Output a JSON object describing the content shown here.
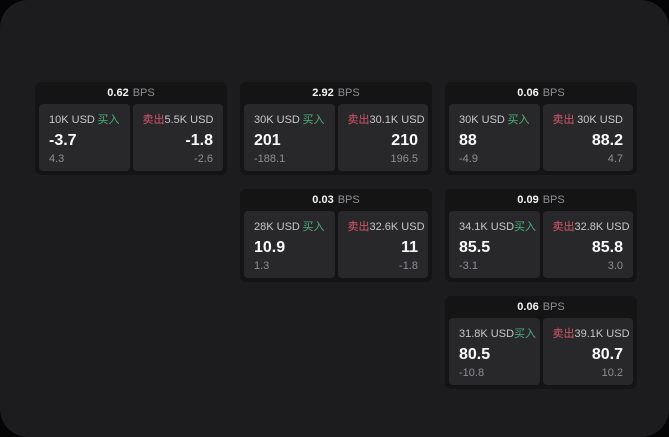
{
  "colors": {
    "buy": "#4fae7c",
    "sell": "#d5556a",
    "muted": "#8f8f93",
    "surface": "#1c1c1e",
    "card": "#141415",
    "pane": "#28282a"
  },
  "labels": {
    "bps_unit": "BPS",
    "buy_side": "买入",
    "sell_side": "卖出"
  },
  "cards": [
    {
      "bps": "0.62",
      "buy": {
        "amount": "10K USD",
        "side": "买入",
        "value": "-3.7",
        "sub": "4.3"
      },
      "sell": {
        "amount": "5.5K USD",
        "side": "卖出",
        "value": "-1.8",
        "sub": "-2.6"
      }
    },
    {
      "bps": "2.92",
      "buy": {
        "amount": "30K USD",
        "side": "买入",
        "value": "201",
        "sub": "-188.1"
      },
      "sell": {
        "amount": "30.1K USD",
        "side": "卖出",
        "value": "210",
        "sub": "196.5"
      }
    },
    {
      "bps": "0.06",
      "buy": {
        "amount": "30K USD",
        "side": "买入",
        "value": "88",
        "sub": "-4.9"
      },
      "sell": {
        "amount": "30K USD",
        "side": "卖出",
        "value": "88.2",
        "sub": "4.7"
      }
    },
    {
      "bps": "0.03",
      "buy": {
        "amount": "28K USD",
        "side": "买入",
        "value": "10.9",
        "sub": "1.3"
      },
      "sell": {
        "amount": "32.6K USD",
        "side": "卖出",
        "value": "11",
        "sub": "-1.8"
      }
    },
    {
      "bps": "0.09",
      "buy": {
        "amount": "34.1K USD",
        "side": "买入",
        "value": "85.5",
        "sub": "-3.1"
      },
      "sell": {
        "amount": "32.8K USD",
        "side": "卖出",
        "value": "85.8",
        "sub": "3.0"
      }
    },
    {
      "bps": "0.06",
      "buy": {
        "amount": "31.8K USD",
        "side": "买入",
        "value": "80.5",
        "sub": "-10.8"
      },
      "sell": {
        "amount": "39.1K USD",
        "side": "卖出",
        "value": "80.7",
        "sub": "10.2"
      }
    }
  ]
}
